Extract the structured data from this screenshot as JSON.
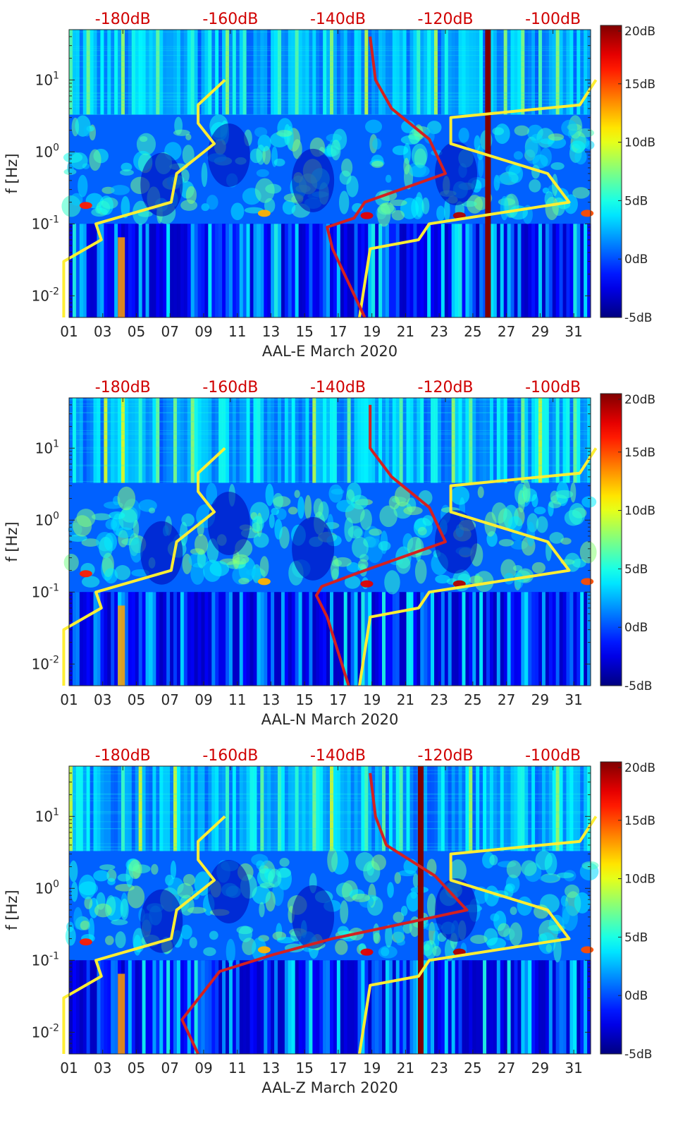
{
  "figure": {
    "type": "spectrogram with overlaid noise-model curves",
    "shared_axes": {
      "y_axis_label": "f [Hz]",
      "y_tick_labels": [
        "10^-2",
        "10^-1",
        "10^0",
        "10^1"
      ],
      "ylim_hz": [
        0.005,
        50
      ],
      "x_tick_labels": [
        "01",
        "03",
        "05",
        "07",
        "09",
        "11",
        "13",
        "15",
        "17",
        "19",
        "21",
        "23",
        "25",
        "27",
        "29",
        "31"
      ],
      "xlim_days": [
        1,
        32
      ],
      "top_axis_labels": [
        "-180dB",
        "-160dB",
        "-140dB",
        "-120dB",
        "-100dB"
      ],
      "top_axis_values_db": [
        -180,
        -160,
        -140,
        -120,
        -100
      ],
      "top_axis_range_db": [
        -190,
        -93
      ],
      "colorbar_labels": [
        "20dB",
        "15dB",
        "10dB",
        "5dB",
        "0dB",
        "-5dB"
      ],
      "colorbar_range_db": [
        -5,
        20
      ]
    },
    "colors": {
      "noise_model_curve": "#ffee33",
      "station_psd_curve": "#d42020",
      "top_axis_text": "#d00000",
      "colormap": [
        "#00008f",
        "#0000ff",
        "#0080ff",
        "#00ffff",
        "#80ff80",
        "#ffff00",
        "#ff8000",
        "#ff0000",
        "#800000"
      ]
    }
  },
  "chart_data": [
    {
      "type": "heatmap",
      "xlabel": "AAL-E March 2020",
      "ylabel": "f [Hz]",
      "dark_column_days": [
        25.9
      ],
      "series": [
        {
          "name": "noise model low (yellow)",
          "db": [
            -161,
            -166,
            -166,
            -163,
            -170,
            -171,
            -185,
            -184,
            -191,
            -191
          ],
          "freq": [
            10,
            4.5,
            2.5,
            1.3,
            0.5,
            0.2,
            0.1,
            0.06,
            0.03,
            0.005
          ]
        },
        {
          "name": "noise model high (yellow)",
          "db": [
            -92,
            -95,
            -119,
            -119,
            -101,
            -97,
            -123,
            -125,
            -134,
            -136
          ],
          "freq": [
            10,
            4.5,
            3,
            1.3,
            0.5,
            0.2,
            0.1,
            0.06,
            0.045,
            0.005
          ]
        },
        {
          "name": "station PSD (red)",
          "db": [
            -134,
            -133,
            -130,
            -123,
            -120,
            -135,
            -137,
            -142,
            -141,
            -135
          ],
          "freq": [
            40,
            10,
            4,
            1.5,
            0.5,
            0.2,
            0.12,
            0.09,
            0.045,
            0.005
          ]
        }
      ]
    },
    {
      "type": "heatmap",
      "xlabel": "AAL-N March 2020",
      "ylabel": "f [Hz]",
      "dark_column_days": [],
      "series": [
        {
          "name": "noise model low (yellow)",
          "db": [
            -161,
            -166,
            -166,
            -163,
            -170,
            -171,
            -185,
            -184,
            -191,
            -191
          ],
          "freq": [
            10,
            4.5,
            2.5,
            1.3,
            0.5,
            0.2,
            0.1,
            0.06,
            0.03,
            0.005
          ]
        },
        {
          "name": "noise model high (yellow)",
          "db": [
            -92,
            -95,
            -119,
            -119,
            -101,
            -97,
            -123,
            -125,
            -134,
            -136
          ],
          "freq": [
            10,
            4.5,
            3,
            1.3,
            0.5,
            0.2,
            0.1,
            0.06,
            0.045,
            0.005
          ]
        },
        {
          "name": "station PSD (red)",
          "db": [
            -134,
            -134,
            -130,
            -123,
            -120,
            -135,
            -143,
            -144,
            -142,
            -138
          ],
          "freq": [
            40,
            10,
            4,
            1.5,
            0.5,
            0.2,
            0.12,
            0.09,
            0.045,
            0.005
          ]
        }
      ]
    },
    {
      "type": "heatmap",
      "xlabel": "AAL-Z March 2020",
      "ylabel": "f [Hz]",
      "dark_column_days": [
        21.9
      ],
      "series": [
        {
          "name": "noise model low (yellow)",
          "db": [
            -161,
            -166,
            -166,
            -163,
            -170,
            -171,
            -185,
            -184,
            -191,
            -191
          ],
          "freq": [
            10,
            4.5,
            2.5,
            1.3,
            0.5,
            0.2,
            0.1,
            0.06,
            0.03,
            0.005
          ]
        },
        {
          "name": "noise model high (yellow)",
          "db": [
            -92,
            -95,
            -119,
            -119,
            -101,
            -97,
            -123,
            -125,
            -134,
            -136
          ],
          "freq": [
            10,
            4.5,
            3,
            1.3,
            0.5,
            0.2,
            0.1,
            0.06,
            0.045,
            0.005
          ]
        },
        {
          "name": "station PSD (red)",
          "db": [
            -134,
            -133,
            -131,
            -122,
            -116,
            -141,
            -152,
            -162,
            -169,
            -166
          ],
          "freq": [
            40,
            10,
            4,
            1.5,
            0.5,
            0.2,
            0.12,
            0.07,
            0.015,
            0.005
          ]
        }
      ]
    }
  ]
}
